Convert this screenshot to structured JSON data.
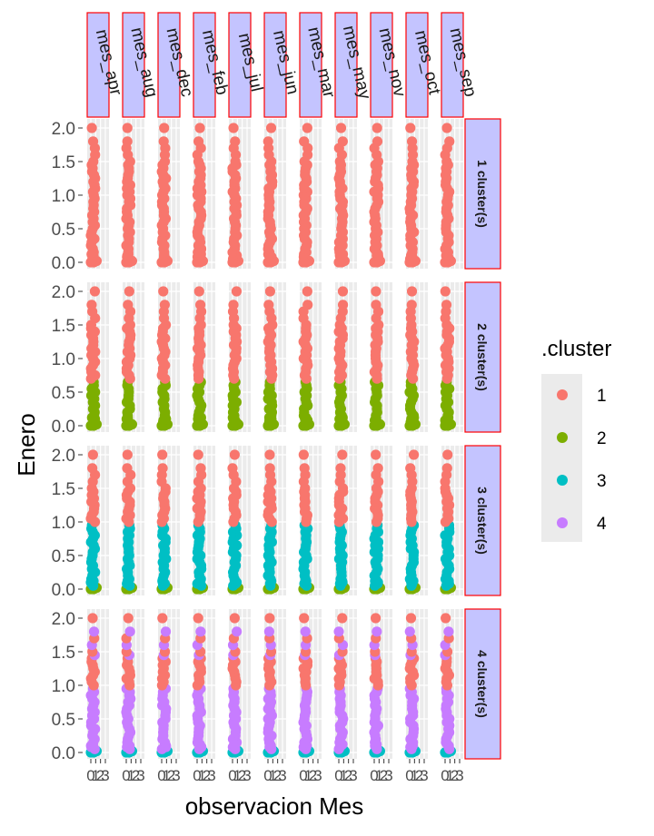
{
  "chart_data": {
    "type": "scatter",
    "xlabel": "observacion Mes",
    "ylabel": "Enero",
    "ylim": [
      0,
      2
    ],
    "yticks": [
      "0.0",
      "0.5",
      "1.0",
      "1.5",
      "2.0"
    ],
    "xticks": [
      "0",
      "1",
      "2",
      "3"
    ],
    "columns": [
      "mes_apr",
      "mes_aug",
      "mes_dec",
      "mes_feb",
      "mes_jul",
      "mes_jun",
      "mes_mar",
      "mes_may",
      "mes_nov",
      "mes_oct",
      "mes_sep"
    ],
    "rows": [
      "1 cluster(s)",
      "2 cluster(s)",
      "3 cluster(s)",
      "4 cluster(s)"
    ],
    "legend": {
      "title": ".cluster",
      "placement": "right",
      "items": [
        {
          "label": "1",
          "color": "#F8766D"
        },
        {
          "label": "2",
          "color": "#7CAE00"
        },
        {
          "label": "3",
          "color": "#00BFC4"
        },
        {
          "label": "4",
          "color": "#C77CFF"
        }
      ]
    },
    "strip_fill": "#C4C4FF",
    "strip_border": "#FF0000",
    "panel_background": "#EBEBEB",
    "cluster_thresholds": [
      {
        "k": 1,
        "bounds": []
      },
      {
        "k": 2,
        "bounds": [
          0.7
        ]
      },
      {
        "k": 3,
        "bounds": [
          0.05,
          1.0
        ]
      },
      {
        "k": 4,
        "bounds": [
          0.05,
          1.0,
          1.45
        ]
      }
    ],
    "point_values_y": [
      0.0,
      0.0,
      0.02,
      0.05,
      0.08,
      0.1,
      0.12,
      0.15,
      0.2,
      0.25,
      0.3,
      0.35,
      0.4,
      0.45,
      0.5,
      0.55,
      0.6,
      0.65,
      0.7,
      0.75,
      0.8,
      0.85,
      0.9,
      0.95,
      1.0,
      1.05,
      1.1,
      1.15,
      1.2,
      1.25,
      1.3,
      1.35,
      1.4,
      1.45,
      1.5,
      1.6,
      1.7,
      1.8,
      2.0
    ]
  }
}
